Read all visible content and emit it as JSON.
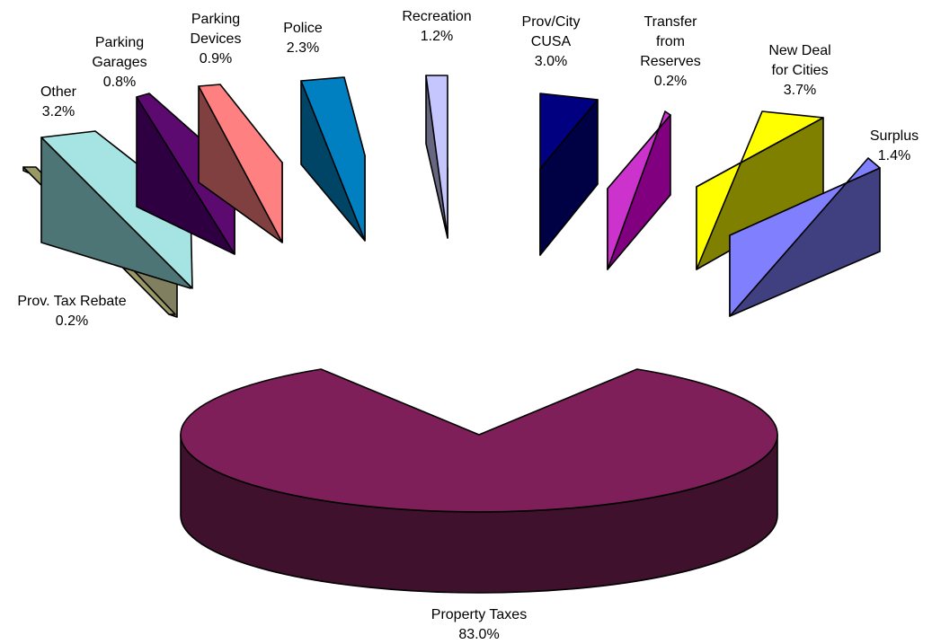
{
  "chart_data": {
    "type": "pie",
    "title": "",
    "exploded": true,
    "three_d": true,
    "slices": [
      {
        "label": "Property Taxes",
        "value": 83.0,
        "value_label": "83.0%",
        "top_color": "#7E1F5A",
        "side_color": "#3F112D"
      },
      {
        "label": "Prov. Tax Rebate",
        "value": 0.2,
        "value_label": "0.2%",
        "top_color": "#999966",
        "side_color": "#808060"
      },
      {
        "label": "Other",
        "value": 3.2,
        "value_label": "3.2%",
        "top_color": "#A6E3E3",
        "side_color": "#4D7575"
      },
      {
        "label": "Parking Garages",
        "value": 0.8,
        "value_label": "0.8%",
        "top_color": "#5C0A70",
        "side_color": "#2E0042"
      },
      {
        "label": "Parking Devices",
        "value": 0.9,
        "value_label": "0.9%",
        "top_color": "#FF8080",
        "side_color": "#804040"
      },
      {
        "label": "Police",
        "value": 2.3,
        "value_label": "2.3%",
        "top_color": "#0080C0",
        "side_color": "#004466"
      },
      {
        "label": "Recreation",
        "value": 1.2,
        "value_label": "1.2%",
        "top_color": "#C6C6FF",
        "side_color": "#666680"
      },
      {
        "label": "Prov/City CUSA",
        "value": 3.0,
        "value_label": "3.0%",
        "top_color": "#000080",
        "side_color": "#000044"
      },
      {
        "label": "Transfer from Reserves",
        "value": 0.2,
        "value_label": "0.2%",
        "top_color": "#CC33CC",
        "side_color": "#800080"
      },
      {
        "label": "New Deal for Cities",
        "value": 3.7,
        "value_label": "3.7%",
        "top_color": "#FFFF00",
        "side_color": "#808000"
      },
      {
        "label": "Surplus",
        "value": 1.4,
        "value_label": "1.4%",
        "top_color": "#8080FF",
        "side_color": "#404080"
      }
    ]
  }
}
